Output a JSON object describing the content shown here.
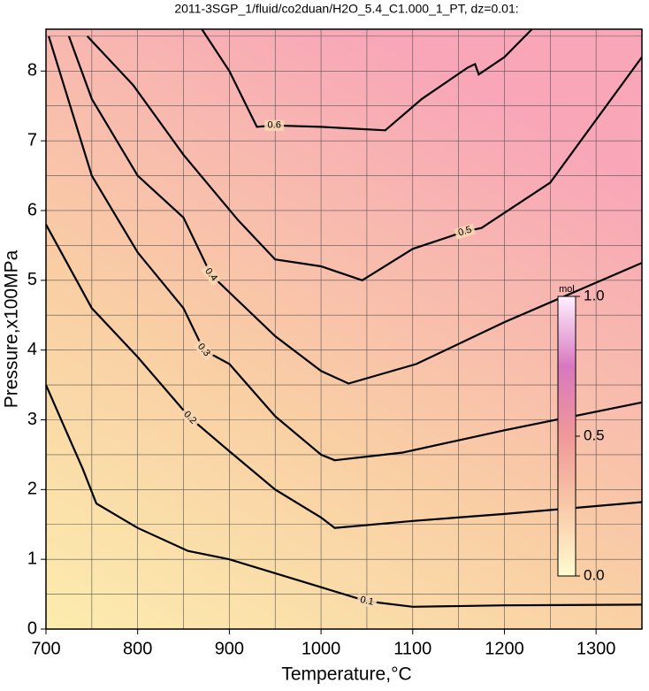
{
  "chart_data": {
    "type": "contour",
    "title": "2011-3SGP_1/fluid/co2duan/H2O_5.4_C1.000_1_PT, dz=0.01:",
    "x_label": "Temperature,°C",
    "y_label": "Pressure,x100MPa",
    "xlim": [
      700,
      1350
    ],
    "ylim": [
      0,
      8.6
    ],
    "xticks": [
      700,
      800,
      900,
      1000,
      1100,
      1200,
      1300
    ],
    "yticks": [
      0,
      1,
      2,
      3,
      4,
      5,
      6,
      7,
      8
    ],
    "xgrid": [
      750,
      800,
      850,
      900,
      950,
      1000,
      1050,
      1100,
      1150,
      1200,
      1250,
      1300
    ],
    "ygrid": [
      0.5,
      1,
      1.5,
      2,
      2.5,
      3,
      3.5,
      4,
      4.5,
      5,
      5.5,
      6,
      6.5,
      7,
      7.5,
      8,
      8.5
    ],
    "grid": true,
    "series": [
      {
        "name": "0.1",
        "color": "#000000",
        "label_at": 8,
        "x": [
          700,
          720,
          740,
          755,
          800,
          855,
          900,
          1000,
          1050,
          1100,
          1200,
          1350
        ],
        "y": [
          3.5,
          2.9,
          2.3,
          1.8,
          1.45,
          1.12,
          1.0,
          0.6,
          0.4,
          0.32,
          0.34,
          0.35
        ]
      },
      {
        "name": "0.2",
        "color": "#000000",
        "label_at": 3,
        "x": [
          700,
          750,
          800,
          857,
          900,
          950,
          1000,
          1015,
          1100,
          1200,
          1350
        ],
        "y": [
          5.8,
          4.6,
          3.9,
          3.03,
          2.55,
          2.0,
          1.6,
          1.45,
          1.55,
          1.65,
          1.82
        ]
      },
      {
        "name": "0.3",
        "color": "#000000",
        "label_at": 4,
        "x": [
          703,
          750,
          800,
          850,
          872,
          900,
          950,
          1000,
          1015,
          1089,
          1200,
          1350
        ],
        "y": [
          8.5,
          6.5,
          5.4,
          4.6,
          4.0,
          3.8,
          3.05,
          2.5,
          2.42,
          2.53,
          2.85,
          3.25
        ]
      },
      {
        "name": "0.4",
        "color": "#000000",
        "label_at": 4,
        "x": [
          725,
          750,
          800,
          850,
          880,
          950,
          1000,
          1030,
          1104,
          1200,
          1350
        ],
        "y": [
          8.5,
          7.6,
          6.5,
          5.9,
          5.08,
          4.2,
          3.7,
          3.52,
          3.8,
          4.4,
          5.25
        ]
      },
      {
        "name": "0.5",
        "color": "#000000",
        "label_at": 8,
        "x": [
          745,
          795,
          850,
          909,
          950,
          1000,
          1045,
          1100,
          1157,
          1175,
          1250,
          1350
        ],
        "y": [
          8.5,
          7.8,
          6.8,
          5.87,
          5.3,
          5.2,
          5.0,
          5.45,
          5.7,
          5.75,
          6.4,
          8.2
        ]
      },
      {
        "name": "0.6",
        "color": "#000000",
        "label_at": 3,
        "x": [
          870,
          900,
          930,
          949,
          1000,
          1070,
          1110,
          1160,
          1168,
          1172,
          1200,
          1230
        ],
        "y": [
          8.6,
          8.0,
          7.2,
          7.22,
          7.2,
          7.15,
          7.6,
          8.05,
          8.1,
          7.95,
          8.2,
          8.6
        ]
      }
    ],
    "colorbar": {
      "label": "mol",
      "lim": [
        0,
        1
      ],
      "colors": [
        "#fffbd0",
        "#f9c9a8",
        "#f09898",
        "#d878c0",
        "#fff0ff"
      ],
      "ticks": [
        {
          "value": 0,
          "label": "0.0"
        },
        {
          "value": 0.5,
          "label": "0.5"
        },
        {
          "value": 1,
          "label": "1.0"
        }
      ]
    }
  }
}
